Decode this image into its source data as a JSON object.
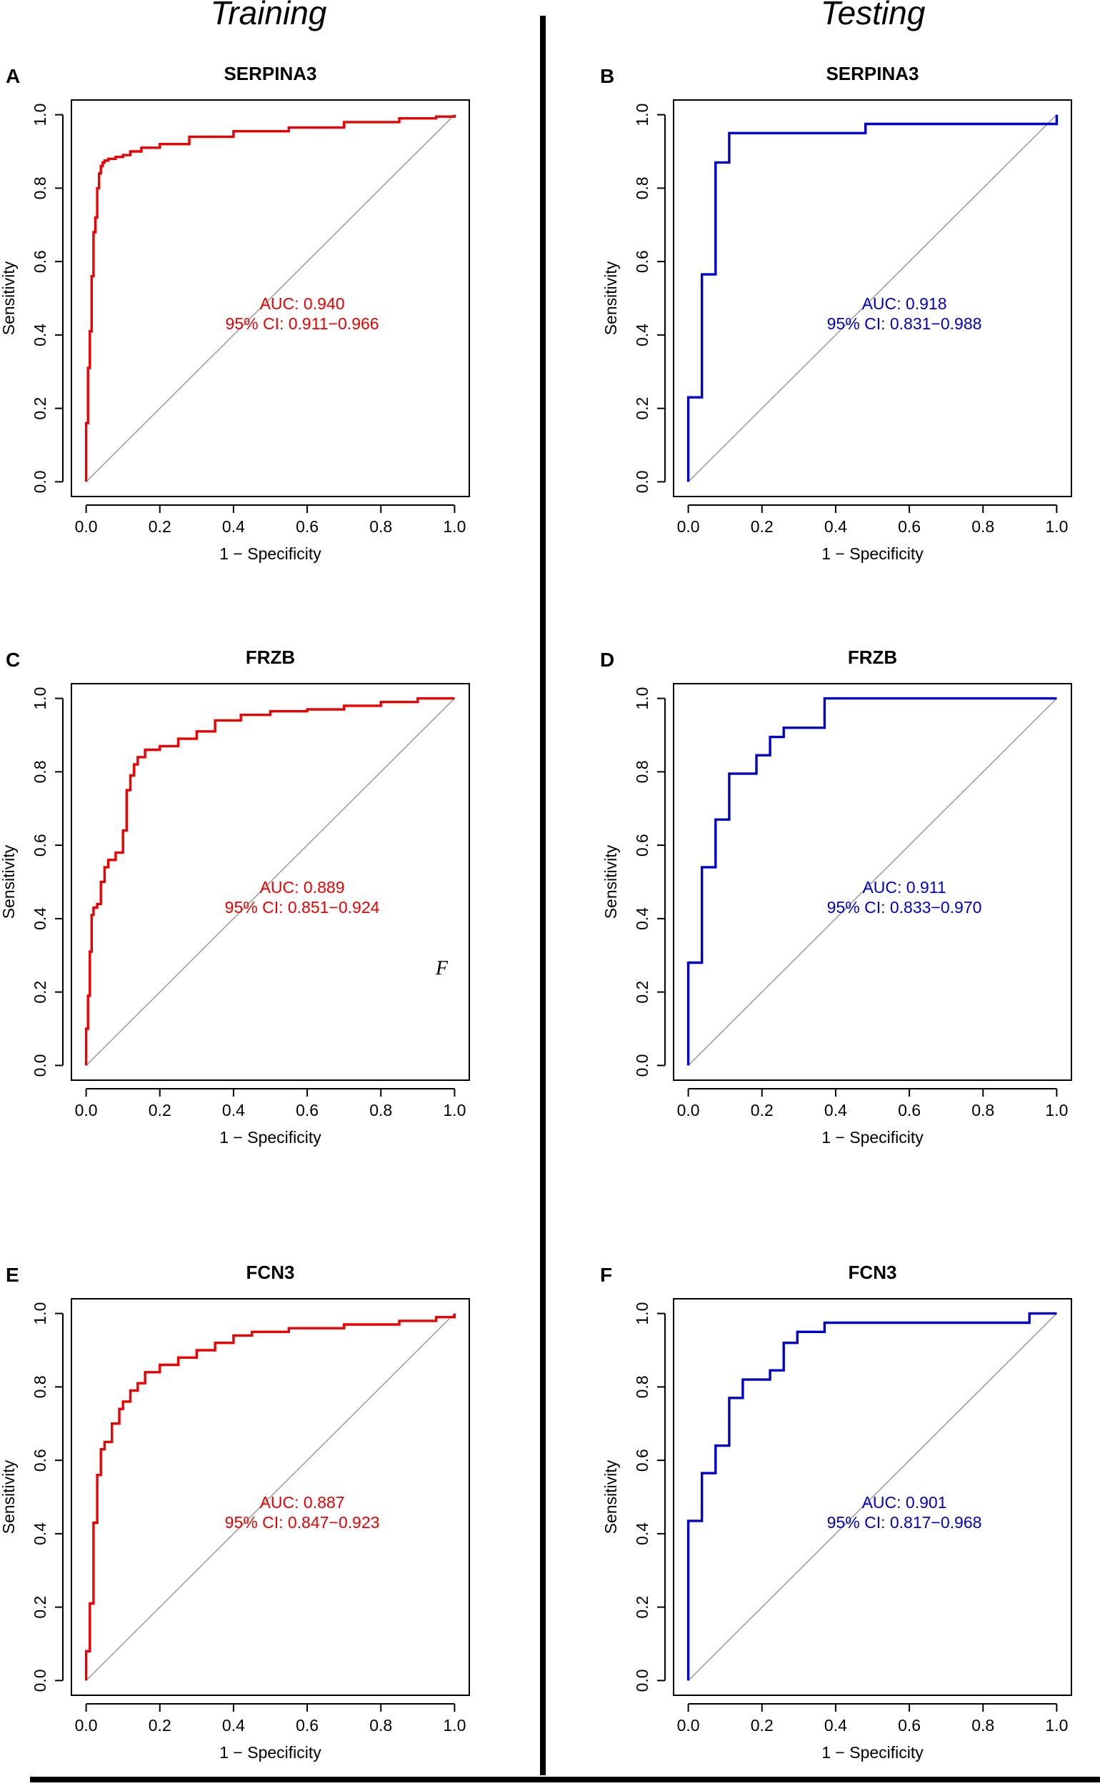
{
  "column_titles": {
    "left": "Training",
    "right": "Testing"
  },
  "stray_mark": "F",
  "colors": {
    "training": "#ee0000",
    "testing": "#0000cc",
    "diagonal": "#a0a0a0",
    "axis": "#000000"
  },
  "chart_data": [
    {
      "type": "line",
      "panel": "A",
      "title": "SERPINA3",
      "group": "Training",
      "xlabel": "1 − Specificity",
      "ylabel": "Sensitivity",
      "xlim": [
        0,
        1
      ],
      "ylim": [
        0,
        1
      ],
      "xticks": [
        "0.0",
        "0.2",
        "0.4",
        "0.6",
        "0.8",
        "1.0"
      ],
      "yticks": [
        "0.0",
        "0.2",
        "0.4",
        "0.6",
        "0.8",
        "1.0"
      ],
      "auc_text": "AUC: 0.940",
      "ci_text": "95% CI: 0.911−0.966",
      "x": [
        0,
        0,
        0.005,
        0.005,
        0.01,
        0.01,
        0.015,
        0.015,
        0.02,
        0.02,
        0.025,
        0.025,
        0.03,
        0.03,
        0.035,
        0.035,
        0.04,
        0.04,
        0.045,
        0.045,
        0.05,
        0.05,
        0.06,
        0.06,
        0.08,
        0.08,
        0.1,
        0.1,
        0.12,
        0.12,
        0.15,
        0.15,
        0.2,
        0.2,
        0.28,
        0.28,
        0.4,
        0.4,
        0.55,
        0.55,
        0.7,
        0.7,
        0.85,
        0.85,
        0.95,
        0.95,
        1.0,
        1.0
      ],
      "y": [
        0,
        0.16,
        0.16,
        0.31,
        0.31,
        0.41,
        0.41,
        0.56,
        0.56,
        0.68,
        0.68,
        0.72,
        0.72,
        0.8,
        0.8,
        0.84,
        0.84,
        0.86,
        0.86,
        0.87,
        0.87,
        0.875,
        0.875,
        0.88,
        0.88,
        0.885,
        0.885,
        0.89,
        0.89,
        0.9,
        0.9,
        0.91,
        0.91,
        0.92,
        0.92,
        0.94,
        0.94,
        0.955,
        0.955,
        0.965,
        0.965,
        0.98,
        0.98,
        0.99,
        0.99,
        0.995,
        0.995,
        1.0
      ]
    },
    {
      "type": "line",
      "panel": "B",
      "title": "SERPINA3",
      "group": "Testing",
      "xlabel": "1 − Specificity",
      "ylabel": "Sensitivity",
      "xlim": [
        0,
        1
      ],
      "ylim": [
        0,
        1
      ],
      "xticks": [
        "0.0",
        "0.2",
        "0.4",
        "0.6",
        "0.8",
        "1.0"
      ],
      "yticks": [
        "0.0",
        "0.2",
        "0.4",
        "0.6",
        "0.8",
        "1.0"
      ],
      "auc_text": "AUC: 0.918",
      "ci_text": "95% CI: 0.831−0.988",
      "x": [
        0,
        0,
        0.037,
        0.037,
        0.074,
        0.074,
        0.111,
        0.111,
        0.481,
        0.481,
        1.0,
        1.0
      ],
      "y": [
        0,
        0.23,
        0.23,
        0.565,
        0.565,
        0.87,
        0.87,
        0.95,
        0.95,
        0.975,
        0.975,
        1.0
      ]
    },
    {
      "type": "line",
      "panel": "C",
      "title": "FRZB",
      "group": "Training",
      "xlabel": "1 − Specificity",
      "ylabel": "Sensitivity",
      "xlim": [
        0,
        1
      ],
      "ylim": [
        0,
        1
      ],
      "xticks": [
        "0.0",
        "0.2",
        "0.4",
        "0.6",
        "0.8",
        "1.0"
      ],
      "yticks": [
        "0.0",
        "0.2",
        "0.4",
        "0.6",
        "0.8",
        "1.0"
      ],
      "auc_text": "AUC: 0.889",
      "ci_text": "95% CI: 0.851−0.924",
      "x": [
        0,
        0,
        0.005,
        0.005,
        0.01,
        0.01,
        0.015,
        0.015,
        0.02,
        0.02,
        0.03,
        0.03,
        0.04,
        0.04,
        0.05,
        0.05,
        0.06,
        0.06,
        0.08,
        0.08,
        0.1,
        0.1,
        0.11,
        0.11,
        0.12,
        0.12,
        0.13,
        0.13,
        0.14,
        0.14,
        0.16,
        0.16,
        0.2,
        0.2,
        0.25,
        0.25,
        0.3,
        0.3,
        0.35,
        0.35,
        0.42,
        0.42,
        0.5,
        0.5,
        0.6,
        0.6,
        0.7,
        0.7,
        0.8,
        0.8,
        0.9,
        0.9,
        1.0,
        1.0
      ],
      "y": [
        0,
        0.1,
        0.1,
        0.19,
        0.19,
        0.31,
        0.31,
        0.41,
        0.41,
        0.43,
        0.43,
        0.44,
        0.44,
        0.5,
        0.5,
        0.54,
        0.54,
        0.56,
        0.56,
        0.58,
        0.58,
        0.64,
        0.64,
        0.75,
        0.75,
        0.79,
        0.79,
        0.82,
        0.82,
        0.84,
        0.84,
        0.86,
        0.86,
        0.87,
        0.87,
        0.89,
        0.89,
        0.91,
        0.91,
        0.94,
        0.94,
        0.955,
        0.955,
        0.965,
        0.965,
        0.97,
        0.97,
        0.98,
        0.98,
        0.99,
        0.99,
        1.0,
        1.0,
        1.0
      ]
    },
    {
      "type": "line",
      "panel": "D",
      "title": "FRZB",
      "group": "Testing",
      "xlabel": "1 − Specificity",
      "ylabel": "Sensitivity",
      "xlim": [
        0,
        1
      ],
      "ylim": [
        0,
        1
      ],
      "xticks": [
        "0.0",
        "0.2",
        "0.4",
        "0.6",
        "0.8",
        "1.0"
      ],
      "yticks": [
        "0.0",
        "0.2",
        "0.4",
        "0.6",
        "0.8",
        "1.0"
      ],
      "auc_text": "AUC: 0.911",
      "ci_text": "95% CI: 0.833−0.970",
      "x": [
        0,
        0,
        0.037,
        0.037,
        0.074,
        0.074,
        0.111,
        0.111,
        0.185,
        0.185,
        0.222,
        0.222,
        0.259,
        0.259,
        0.37,
        0.37,
        1.0
      ],
      "y": [
        0,
        0.28,
        0.28,
        0.54,
        0.54,
        0.67,
        0.67,
        0.795,
        0.795,
        0.845,
        0.845,
        0.895,
        0.895,
        0.92,
        0.92,
        1.0,
        1.0
      ]
    },
    {
      "type": "line",
      "panel": "E",
      "title": "FCN3",
      "group": "Training",
      "xlabel": "1 − Specificity",
      "ylabel": "Sensitivity",
      "xlim": [
        0,
        1
      ],
      "ylim": [
        0,
        1
      ],
      "xticks": [
        "0.0",
        "0.2",
        "0.4",
        "0.6",
        "0.8",
        "1.0"
      ],
      "yticks": [
        "0.0",
        "0.2",
        "0.4",
        "0.6",
        "0.8",
        "1.0"
      ],
      "auc_text": "AUC: 0.887",
      "ci_text": "95% CI: 0.847−0.923",
      "x": [
        0,
        0,
        0.01,
        0.01,
        0.02,
        0.02,
        0.03,
        0.03,
        0.04,
        0.04,
        0.05,
        0.05,
        0.07,
        0.07,
        0.09,
        0.09,
        0.1,
        0.1,
        0.12,
        0.12,
        0.14,
        0.14,
        0.16,
        0.16,
        0.2,
        0.2,
        0.25,
        0.25,
        0.3,
        0.3,
        0.35,
        0.35,
        0.4,
        0.4,
        0.45,
        0.45,
        0.55,
        0.55,
        0.7,
        0.7,
        0.85,
        0.85,
        0.95,
        0.95,
        1.0,
        1.0
      ],
      "y": [
        0,
        0.08,
        0.08,
        0.21,
        0.21,
        0.43,
        0.43,
        0.56,
        0.56,
        0.63,
        0.63,
        0.65,
        0.65,
        0.7,
        0.7,
        0.74,
        0.74,
        0.76,
        0.76,
        0.79,
        0.79,
        0.81,
        0.81,
        0.84,
        0.84,
        0.86,
        0.86,
        0.88,
        0.88,
        0.9,
        0.9,
        0.92,
        0.92,
        0.94,
        0.94,
        0.95,
        0.95,
        0.96,
        0.96,
        0.97,
        0.97,
        0.98,
        0.98,
        0.99,
        0.99,
        1.0
      ]
    },
    {
      "type": "line",
      "panel": "F",
      "title": "FCN3",
      "group": "Testing",
      "xlabel": "1 − Specificity",
      "ylabel": "Sensitivity",
      "xlim": [
        0,
        1
      ],
      "ylim": [
        0,
        1
      ],
      "xticks": [
        "0.0",
        "0.2",
        "0.4",
        "0.6",
        "0.8",
        "1.0"
      ],
      "yticks": [
        "0.0",
        "0.2",
        "0.4",
        "0.6",
        "0.8",
        "1.0"
      ],
      "auc_text": "AUC: 0.901",
      "ci_text": "95% CI: 0.817−0.968",
      "x": [
        0,
        0,
        0.037,
        0.037,
        0.074,
        0.074,
        0.111,
        0.111,
        0.148,
        0.148,
        0.222,
        0.222,
        0.259,
        0.259,
        0.296,
        0.296,
        0.37,
        0.37,
        0.926,
        0.926,
        1.0
      ],
      "y": [
        0,
        0.435,
        0.435,
        0.565,
        0.565,
        0.64,
        0.64,
        0.77,
        0.77,
        0.82,
        0.82,
        0.845,
        0.845,
        0.92,
        0.92,
        0.95,
        0.95,
        0.975,
        0.975,
        1.0,
        1.0
      ]
    }
  ]
}
